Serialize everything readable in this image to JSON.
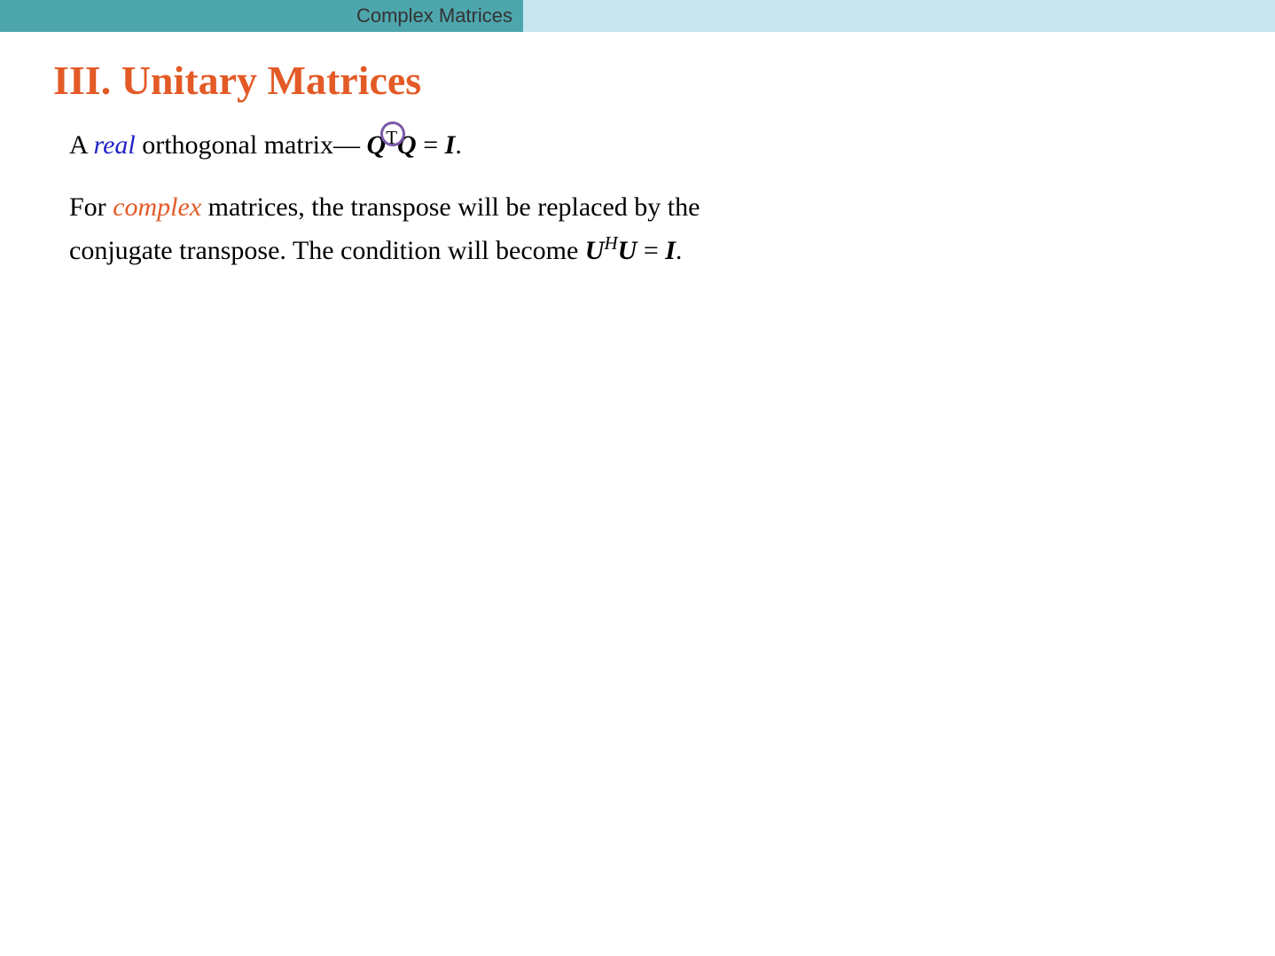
{
  "header": {
    "title": "Complex Matrices",
    "left_bg": "#4ea6ad",
    "right_bg": "#c7e6ef"
  },
  "section": {
    "title": "III. Unitary Matrices",
    "title_color": "#e35a26"
  },
  "line1": {
    "prefix": "A ",
    "real": "real",
    "real_color": "#2121c9",
    "mid": " orthogonal matrix— ",
    "Q1": "Q",
    "T": "T",
    "Q2": "Q",
    "eq": " = ",
    "I": "I",
    "period": ".",
    "annot_color": "#7a5aa8"
  },
  "line2": {
    "prefix": "For ",
    "complex": "complex",
    "complex_color": "#e35a26",
    "rest1": " matrices, the transpose will be replaced by the",
    "rest2": "conjugate transpose. The condition will become ",
    "U1": "U",
    "H": "H",
    "U2": "U",
    "eq": " = ",
    "I": "I",
    "period": "."
  }
}
